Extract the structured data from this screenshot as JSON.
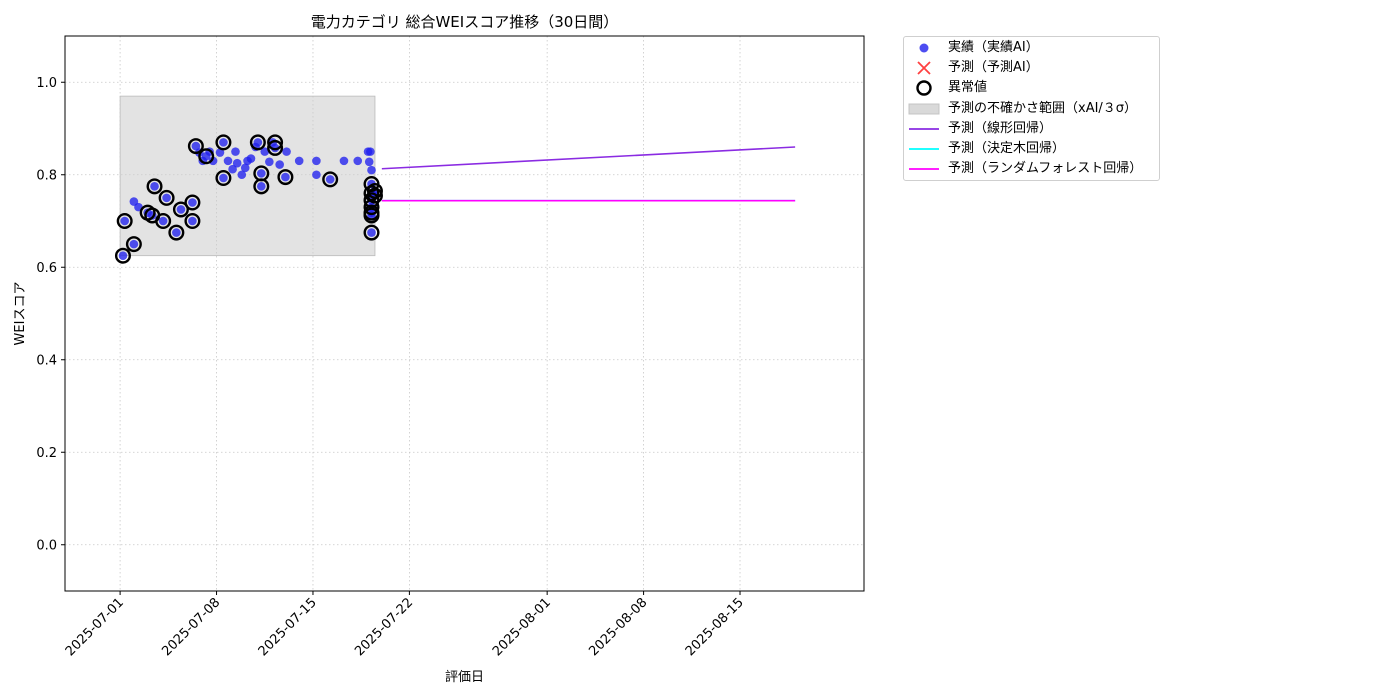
{
  "chart_data": {
    "type": "scatter",
    "title": "電力カテゴリ 総合WEIスコア推移（30日間）",
    "xlabel": "評価日",
    "ylabel": "WEIスコア",
    "xlim": [
      "2025-06-27",
      "2025-08-24"
    ],
    "ylim": [
      -0.1,
      1.1
    ],
    "y_ticks": [
      0.0,
      0.2,
      0.4,
      0.6,
      0.8,
      1.0
    ],
    "y_tick_labels": [
      "0.0",
      "0.2",
      "0.4",
      "0.6",
      "0.8",
      "1.0"
    ],
    "x_ticks": [
      "2025-07-01",
      "2025-07-08",
      "2025-07-15",
      "2025-07-22",
      "2025-08-01",
      "2025-08-08",
      "2025-08-15"
    ],
    "grid": true,
    "legend_position": "outside-upper-right",
    "series": [
      {
        "name": "実績（実績AI）",
        "kind": "scatter",
        "color": "#2020ee",
        "points": [
          [
            "2025-07-01T05:00",
            0.625
          ],
          [
            "2025-07-01T08:00",
            0.7
          ],
          [
            "2025-07-02T00:00",
            0.742
          ],
          [
            "2025-07-02T08:00",
            0.73
          ],
          [
            "2025-07-02T00:00",
            0.65
          ],
          [
            "2025-07-03T00:00",
            0.718
          ],
          [
            "2025-07-03T08:00",
            0.712
          ],
          [
            "2025-07-03T12:00",
            0.775
          ],
          [
            "2025-07-04T03:00",
            0.7
          ],
          [
            "2025-07-04T09:00",
            0.75
          ],
          [
            "2025-07-05T02:00",
            0.675
          ],
          [
            "2025-07-05T10:00",
            0.725
          ],
          [
            "2025-07-06T06:00",
            0.74
          ],
          [
            "2025-07-06T06:00",
            0.7
          ],
          [
            "2025-07-06T12:00",
            0.862
          ],
          [
            "2025-07-06T18:00",
            0.848
          ],
          [
            "2025-07-07T00:00",
            0.83
          ],
          [
            "2025-07-07T06:00",
            0.84
          ],
          [
            "2025-07-07T12:00",
            0.85
          ],
          [
            "2025-07-07T18:00",
            0.83
          ],
          [
            "2025-07-08T06:00",
            0.848
          ],
          [
            "2025-07-08T12:00",
            0.87
          ],
          [
            "2025-07-08T12:00",
            0.793
          ],
          [
            "2025-07-08T20:00",
            0.83
          ],
          [
            "2025-07-09T04:00",
            0.812
          ],
          [
            "2025-07-09T09:00",
            0.85
          ],
          [
            "2025-07-09T12:00",
            0.825
          ],
          [
            "2025-07-09T20:00",
            0.8
          ],
          [
            "2025-07-10T02:00",
            0.815
          ],
          [
            "2025-07-10T06:00",
            0.83
          ],
          [
            "2025-07-10T12:00",
            0.835
          ],
          [
            "2025-07-10T20:00",
            0.86
          ],
          [
            "2025-07-11T00:00",
            0.87
          ],
          [
            "2025-07-11T06:00",
            0.803
          ],
          [
            "2025-07-11T06:00",
            0.775
          ],
          [
            "2025-07-11T12:00",
            0.85
          ],
          [
            "2025-07-11T20:00",
            0.828
          ],
          [
            "2025-07-12T02:00",
            0.87
          ],
          [
            "2025-07-12T06:00",
            0.858
          ],
          [
            "2025-07-12T14:00",
            0.822
          ],
          [
            "2025-07-13T00:00",
            0.795
          ],
          [
            "2025-07-13T02:00",
            0.85
          ],
          [
            "2025-07-14T00:00",
            0.83
          ],
          [
            "2025-07-15T06:00",
            0.8
          ],
          [
            "2025-07-15T06:00",
            0.83
          ],
          [
            "2025-07-16T06:00",
            0.79
          ],
          [
            "2025-07-17T06:00",
            0.83
          ],
          [
            "2025-07-18T06:00",
            0.83
          ],
          [
            "2025-07-19T00:00",
            0.85
          ],
          [
            "2025-07-19T02:00",
            0.828
          ],
          [
            "2025-07-19T04:00",
            0.85
          ],
          [
            "2025-07-19T06:00",
            0.81
          ],
          [
            "2025-07-19T06:00",
            0.78
          ],
          [
            "2025-07-19T06:00",
            0.76
          ],
          [
            "2025-07-19T06:00",
            0.745
          ],
          [
            "2025-07-19T06:00",
            0.73
          ],
          [
            "2025-07-19T06:00",
            0.718
          ],
          [
            "2025-07-19T06:00",
            0.712
          ],
          [
            "2025-07-19T06:00",
            0.675
          ],
          [
            "2025-07-19T12:00",
            0.765
          ],
          [
            "2025-07-19T12:00",
            0.755
          ]
        ]
      },
      {
        "name": "予測（予測AI）",
        "kind": "marker-x",
        "color": "#ff4040",
        "points": []
      },
      {
        "name": "異常値",
        "kind": "ring",
        "color": "#000000",
        "points": [
          [
            "2025-07-01T05:00",
            0.625
          ],
          [
            "2025-07-01T08:00",
            0.7
          ],
          [
            "2025-07-02T00:00",
            0.65
          ],
          [
            "2025-07-03T00:00",
            0.718
          ],
          [
            "2025-07-03T08:00",
            0.712
          ],
          [
            "2025-07-03T12:00",
            0.775
          ],
          [
            "2025-07-04T03:00",
            0.7
          ],
          [
            "2025-07-04T09:00",
            0.75
          ],
          [
            "2025-07-05T02:00",
            0.675
          ],
          [
            "2025-07-05T10:00",
            0.725
          ],
          [
            "2025-07-06T06:00",
            0.74
          ],
          [
            "2025-07-06T06:00",
            0.7
          ],
          [
            "2025-07-06T12:00",
            0.862
          ],
          [
            "2025-07-07T06:00",
            0.84
          ],
          [
            "2025-07-08T12:00",
            0.87
          ],
          [
            "2025-07-08T12:00",
            0.793
          ],
          [
            "2025-07-11T00:00",
            0.87
          ],
          [
            "2025-07-11T06:00",
            0.803
          ],
          [
            "2025-07-11T06:00",
            0.775
          ],
          [
            "2025-07-12T06:00",
            0.858
          ],
          [
            "2025-07-12T06:00",
            0.87
          ],
          [
            "2025-07-13T00:00",
            0.795
          ],
          [
            "2025-07-16T06:00",
            0.79
          ],
          [
            "2025-07-19T06:00",
            0.78
          ],
          [
            "2025-07-19T06:00",
            0.76
          ],
          [
            "2025-07-19T06:00",
            0.745
          ],
          [
            "2025-07-19T06:00",
            0.73
          ],
          [
            "2025-07-19T06:00",
            0.718
          ],
          [
            "2025-07-19T06:00",
            0.712
          ],
          [
            "2025-07-19T06:00",
            0.675
          ],
          [
            "2025-07-19T12:00",
            0.765
          ],
          [
            "2025-07-19T12:00",
            0.755
          ]
        ]
      },
      {
        "name": "予測の不確かさ範囲（xAI/３σ）",
        "kind": "band",
        "color": "#cccccc",
        "x_range": [
          "2025-07-01",
          "2025-07-19T12:00"
        ],
        "y_range": [
          0.625,
          0.97
        ]
      },
      {
        "name": "予測（線形回帰）",
        "kind": "line",
        "color": "#8a2be2",
        "points": [
          [
            "2025-07-20",
            0.813
          ],
          [
            "2025-08-19",
            0.86
          ]
        ]
      },
      {
        "name": "予測（決定木回帰）",
        "kind": "line",
        "color": "#00ffff",
        "points": [
          [
            "2025-07-20",
            0.744
          ],
          [
            "2025-08-19",
            0.744
          ]
        ]
      },
      {
        "name": "予測（ランダムフォレスト回帰）",
        "kind": "line",
        "color": "#ff00ff",
        "points": [
          [
            "2025-07-20",
            0.744
          ],
          [
            "2025-08-19",
            0.744
          ]
        ]
      }
    ]
  }
}
